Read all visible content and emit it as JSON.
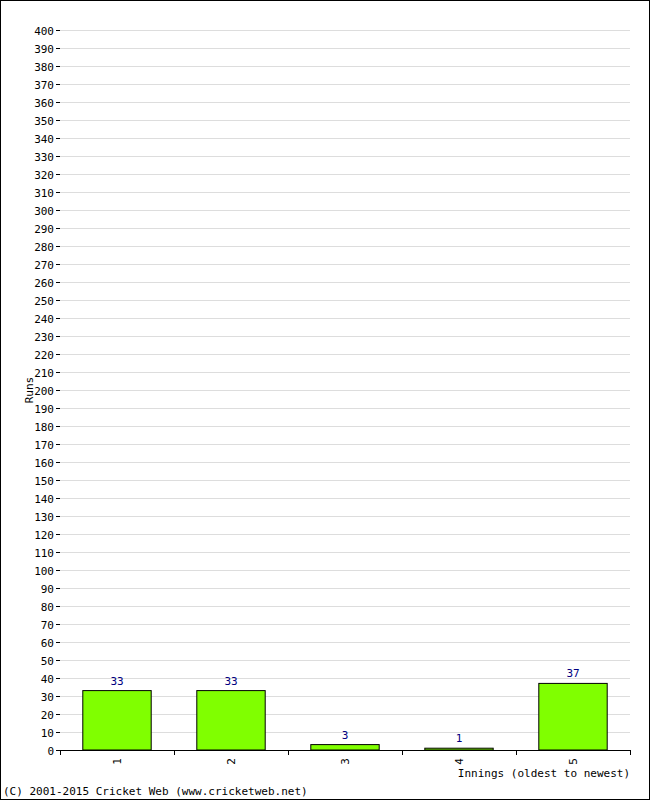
{
  "chart_data": {
    "type": "bar",
    "categories": [
      "1",
      "2",
      "3",
      "4",
      "5"
    ],
    "values": [
      33,
      33,
      3,
      1,
      37
    ],
    "color": "#80ff00",
    "xlabel": "Innings (oldest to newest)",
    "ylabel": "Runs",
    "annotations": [
      "(C) 2001-2015 Cricket Web (www.cricketweb.net)"
    ],
    "ylim": [
      0,
      400
    ],
    "yticks": [
      0,
      10,
      20,
      30,
      40,
      50,
      60,
      70,
      80,
      90,
      100,
      110,
      120,
      130,
      140,
      150,
      160,
      170,
      180,
      190,
      200,
      210,
      220,
      230,
      240,
      250,
      260,
      270,
      280,
      290,
      300,
      310,
      320,
      330,
      340,
      350,
      360,
      370,
      380,
      390,
      400
    ],
    "grid": true,
    "data_labels": true
  }
}
